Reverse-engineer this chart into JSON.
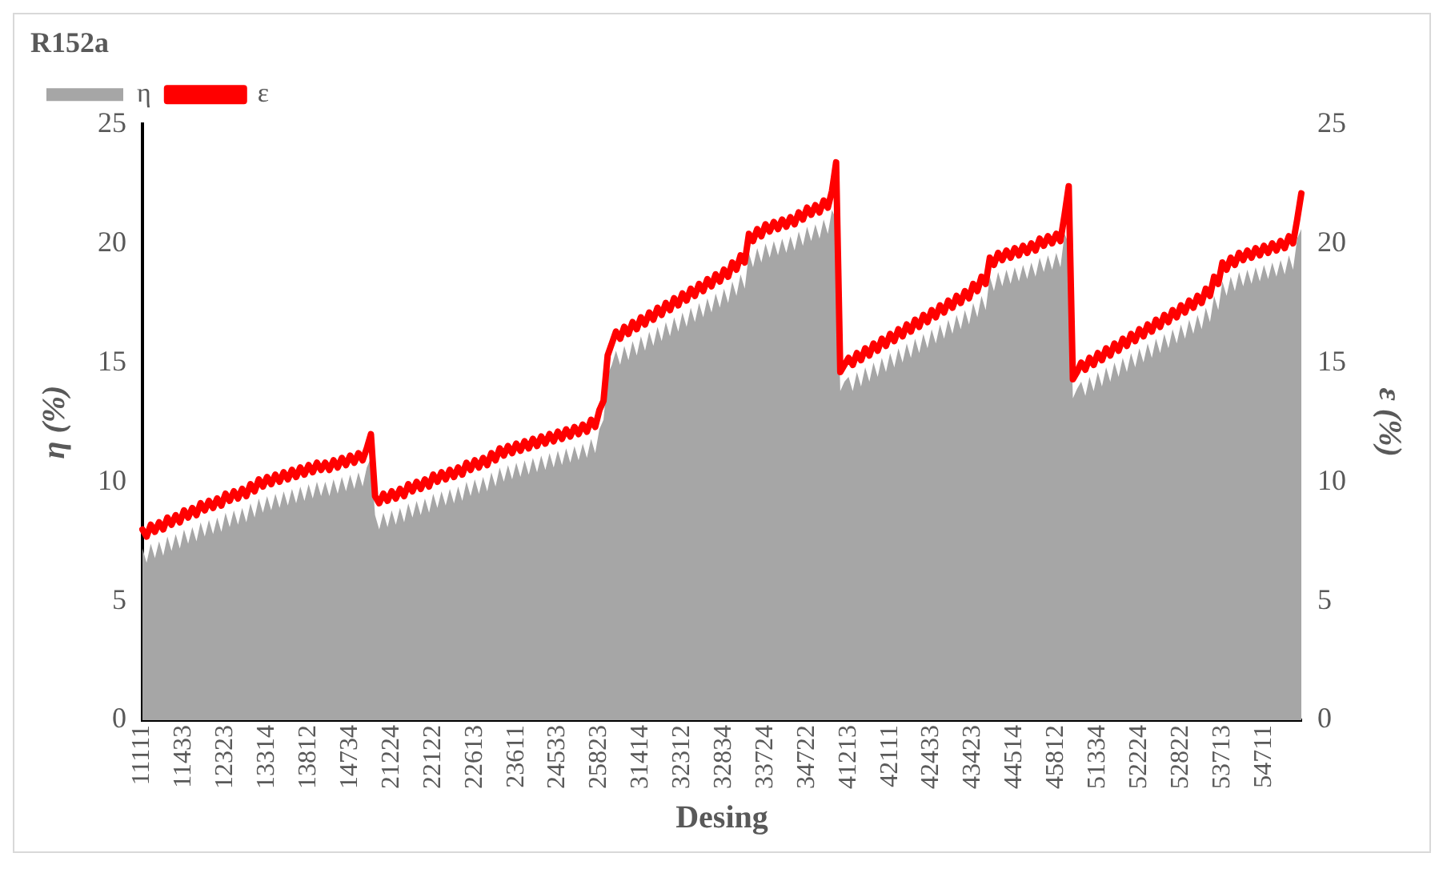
{
  "chart_data": {
    "type": "area",
    "title": "R152a",
    "xlabel": "Desing",
    "ylabel": "η (%)",
    "y2label": "ε (%)",
    "legend": "top left",
    "grid": false,
    "categories": [
      "11111",
      null,
      null,
      null,
      null,
      null,
      null,
      null,
      null,
      null,
      "11433",
      null,
      null,
      null,
      null,
      null,
      null,
      null,
      null,
      null,
      "12323",
      null,
      null,
      null,
      null,
      null,
      null,
      null,
      null,
      null,
      "13314",
      null,
      null,
      null,
      null,
      null,
      null,
      null,
      null,
      null,
      "13812",
      null,
      null,
      null,
      null,
      null,
      null,
      null,
      null,
      null,
      "14734",
      null,
      null,
      null,
      null,
      null,
      null,
      null,
      null,
      null,
      "21224",
      null,
      null,
      null,
      null,
      null,
      null,
      null,
      null,
      null,
      "22122",
      null,
      null,
      null,
      null,
      null,
      null,
      null,
      null,
      null,
      "22613",
      null,
      null,
      null,
      null,
      null,
      null,
      null,
      null,
      null,
      "23611",
      null,
      null,
      null,
      null,
      null,
      null,
      null,
      null,
      null,
      "24533",
      null,
      null,
      null,
      null,
      null,
      null,
      null,
      null,
      null,
      "25823",
      null,
      null,
      null,
      null,
      null,
      null,
      null,
      null,
      null,
      "31414",
      null,
      null,
      null,
      null,
      null,
      null,
      null,
      null,
      null,
      "32312",
      null,
      null,
      null,
      null,
      null,
      null,
      null,
      null,
      null,
      "32834",
      null,
      null,
      null,
      null,
      null,
      null,
      null,
      null,
      null,
      "33724",
      null,
      null,
      null,
      null,
      null,
      null,
      null,
      null,
      null,
      "34722",
      null,
      null,
      null,
      null,
      null,
      null,
      null,
      null,
      null,
      "41213",
      null,
      null,
      null,
      null,
      null,
      null,
      null,
      null,
      null,
      "42111",
      null,
      null,
      null,
      null,
      null,
      null,
      null,
      null,
      null,
      "42433",
      null,
      null,
      null,
      null,
      null,
      null,
      null,
      null,
      null,
      "43423",
      null,
      null,
      null,
      null,
      null,
      null,
      null,
      null,
      null,
      "44514",
      null,
      null,
      null,
      null,
      null,
      null,
      null,
      null,
      null,
      "45812",
      null,
      null,
      null,
      null,
      null,
      null,
      null,
      null,
      null,
      "51334",
      null,
      null,
      null,
      null,
      null,
      null,
      null,
      null,
      null,
      "52224",
      null,
      null,
      null,
      null,
      null,
      null,
      null,
      null,
      null,
      "52822",
      null,
      null,
      null,
      null,
      null,
      null,
      null,
      null,
      null,
      "53713",
      null,
      null,
      null,
      null,
      null,
      null,
      null,
      null,
      null,
      "54711",
      null,
      null,
      null,
      null,
      null,
      null,
      null,
      null,
      null
    ],
    "ylim": [
      0,
      25
    ],
    "yticks": [
      0,
      5,
      10,
      15,
      20,
      25
    ],
    "y2lim": [
      0,
      25
    ],
    "y2ticks": [
      0,
      5,
      10,
      15,
      20,
      25
    ],
    "series": [
      {
        "name": "η",
        "color": "#a6a6a6",
        "type": "area",
        "values": [
          7.2,
          6.6,
          7.4,
          6.8,
          7.5,
          6.9,
          7.7,
          7.1,
          7.8,
          7.2,
          8.0,
          7.4,
          8.1,
          7.5,
          8.3,
          7.7,
          8.4,
          7.8,
          8.5,
          7.9,
          8.7,
          8.1,
          8.8,
          8.2,
          8.9,
          8.3,
          9.1,
          8.5,
          9.3,
          8.7,
          9.4,
          8.8,
          9.5,
          8.9,
          9.6,
          9.0,
          9.7,
          9.1,
          9.8,
          9.2,
          9.9,
          9.3,
          10.0,
          9.4,
          10.0,
          9.4,
          10.1,
          9.5,
          10.2,
          9.6,
          10.3,
          9.7,
          10.4,
          9.8,
          10.6,
          11.0,
          8.6,
          8.0,
          8.7,
          8.1,
          8.8,
          8.2,
          8.9,
          8.3,
          9.1,
          8.5,
          9.2,
          8.6,
          9.3,
          8.7,
          9.5,
          8.9,
          9.6,
          9.0,
          9.7,
          9.1,
          9.8,
          9.2,
          10.0,
          9.4,
          10.1,
          9.5,
          10.2,
          9.6,
          10.4,
          9.8,
          10.6,
          10.0,
          10.7,
          10.1,
          10.8,
          10.2,
          10.9,
          10.3,
          11.0,
          10.4,
          11.1,
          10.5,
          11.2,
          10.6,
          11.3,
          10.7,
          11.4,
          10.8,
          11.5,
          10.9,
          11.6,
          11.0,
          11.8,
          11.2,
          12.2,
          12.6,
          14.5,
          14.9,
          15.5,
          14.9,
          15.7,
          15.1,
          15.9,
          15.3,
          16.1,
          15.5,
          16.3,
          15.7,
          16.5,
          15.9,
          16.7,
          16.1,
          16.9,
          16.3,
          17.1,
          16.5,
          17.3,
          16.7,
          17.5,
          16.9,
          17.7,
          17.1,
          17.9,
          17.3,
          18.1,
          17.5,
          18.4,
          17.8,
          18.7,
          18.1,
          19.6,
          19.0,
          19.8,
          19.2,
          20.0,
          19.4,
          20.1,
          19.5,
          20.2,
          19.6,
          20.3,
          19.7,
          20.5,
          19.9,
          20.7,
          20.1,
          20.8,
          20.2,
          21.0,
          20.4,
          21.4,
          21.0,
          13.8,
          14.2,
          14.4,
          13.8,
          14.6,
          14.0,
          14.8,
          14.2,
          15.0,
          14.4,
          15.2,
          14.6,
          15.4,
          14.8,
          15.6,
          15.0,
          15.8,
          15.2,
          16.0,
          15.4,
          16.2,
          15.6,
          16.4,
          15.8,
          16.6,
          16.0,
          16.8,
          16.2,
          17.0,
          16.4,
          17.2,
          16.6,
          17.5,
          16.9,
          17.8,
          17.2,
          18.6,
          18.0,
          18.8,
          18.2,
          18.9,
          18.3,
          19.0,
          18.4,
          19.1,
          18.5,
          19.2,
          18.6,
          19.4,
          18.8,
          19.5,
          18.9,
          19.6,
          19.0,
          20.4,
          20.0,
          13.5,
          13.9,
          14.2,
          13.6,
          14.4,
          13.8,
          14.6,
          14.0,
          14.8,
          14.2,
          15.0,
          14.4,
          15.2,
          14.6,
          15.4,
          14.8,
          15.6,
          15.0,
          15.8,
          15.2,
          16.0,
          15.4,
          16.2,
          15.6,
          16.4,
          15.8,
          16.6,
          16.0,
          16.8,
          16.2,
          17.0,
          16.4,
          17.3,
          16.7,
          17.8,
          17.2,
          18.4,
          17.8,
          18.6,
          18.0,
          18.8,
          18.2,
          18.9,
          18.3,
          19.0,
          18.4,
          19.1,
          18.5,
          19.2,
          18.6,
          19.3,
          18.7,
          19.5,
          18.9,
          20.2,
          20.6
        ]
      },
      {
        "name": "ε",
        "color": "#ff0000",
        "type": "line",
        "axis": "y2",
        "values": [
          8.0,
          7.7,
          8.2,
          7.9,
          8.3,
          8.0,
          8.5,
          8.2,
          8.6,
          8.3,
          8.8,
          8.5,
          8.9,
          8.6,
          9.1,
          8.8,
          9.2,
          8.9,
          9.3,
          9.0,
          9.5,
          9.2,
          9.6,
          9.3,
          9.7,
          9.4,
          9.9,
          9.6,
          10.1,
          9.8,
          10.2,
          9.9,
          10.3,
          10.0,
          10.4,
          10.1,
          10.5,
          10.2,
          10.6,
          10.3,
          10.7,
          10.4,
          10.8,
          10.5,
          10.8,
          10.5,
          10.9,
          10.6,
          11.0,
          10.7,
          11.1,
          10.8,
          11.2,
          10.9,
          11.4,
          12.0,
          9.4,
          9.1,
          9.5,
          9.2,
          9.6,
          9.3,
          9.7,
          9.4,
          9.9,
          9.6,
          10.0,
          9.7,
          10.1,
          9.8,
          10.3,
          10.0,
          10.4,
          10.1,
          10.5,
          10.2,
          10.6,
          10.3,
          10.8,
          10.5,
          10.9,
          10.6,
          11.0,
          10.7,
          11.2,
          10.9,
          11.4,
          11.1,
          11.5,
          11.2,
          11.6,
          11.3,
          11.7,
          11.4,
          11.8,
          11.5,
          11.9,
          11.6,
          12.0,
          11.7,
          12.1,
          11.8,
          12.2,
          11.9,
          12.3,
          12.0,
          12.4,
          12.1,
          12.6,
          12.3,
          13.0,
          13.4,
          15.3,
          15.8,
          16.3,
          16.0,
          16.5,
          16.2,
          16.7,
          16.4,
          16.9,
          16.6,
          17.1,
          16.8,
          17.3,
          17.0,
          17.5,
          17.2,
          17.7,
          17.4,
          17.9,
          17.6,
          18.1,
          17.8,
          18.3,
          18.0,
          18.5,
          18.2,
          18.7,
          18.4,
          18.9,
          18.6,
          19.2,
          18.9,
          19.5,
          19.2,
          20.4,
          20.1,
          20.6,
          20.3,
          20.8,
          20.5,
          20.9,
          20.6,
          21.0,
          20.7,
          21.1,
          20.8,
          21.3,
          21.0,
          21.5,
          21.2,
          21.6,
          21.3,
          21.8,
          21.5,
          22.2,
          23.4,
          14.6,
          14.9,
          15.2,
          14.9,
          15.4,
          15.1,
          15.6,
          15.3,
          15.8,
          15.5,
          16.0,
          15.7,
          16.2,
          15.9,
          16.4,
          16.1,
          16.6,
          16.3,
          16.8,
          16.5,
          17.0,
          16.7,
          17.2,
          16.9,
          17.4,
          17.1,
          17.6,
          17.3,
          17.8,
          17.5,
          18.0,
          17.7,
          18.3,
          18.0,
          18.6,
          18.3,
          19.4,
          19.1,
          19.6,
          19.3,
          19.7,
          19.4,
          19.8,
          19.5,
          19.9,
          19.6,
          20.0,
          19.7,
          20.2,
          19.9,
          20.3,
          20.0,
          20.4,
          20.1,
          21.2,
          22.4,
          14.3,
          14.6,
          15.0,
          14.7,
          15.2,
          14.9,
          15.4,
          15.1,
          15.6,
          15.3,
          15.8,
          15.5,
          16.0,
          15.7,
          16.2,
          15.9,
          16.4,
          16.1,
          16.6,
          16.3,
          16.8,
          16.5,
          17.0,
          16.7,
          17.2,
          16.9,
          17.4,
          17.1,
          17.6,
          17.3,
          17.8,
          17.5,
          18.1,
          17.8,
          18.6,
          18.3,
          19.2,
          18.9,
          19.4,
          19.1,
          19.6,
          19.3,
          19.7,
          19.4,
          19.8,
          19.5,
          19.9,
          19.6,
          20.0,
          19.7,
          20.1,
          19.8,
          20.3,
          20.0,
          21.0,
          22.1
        ]
      }
    ]
  }
}
